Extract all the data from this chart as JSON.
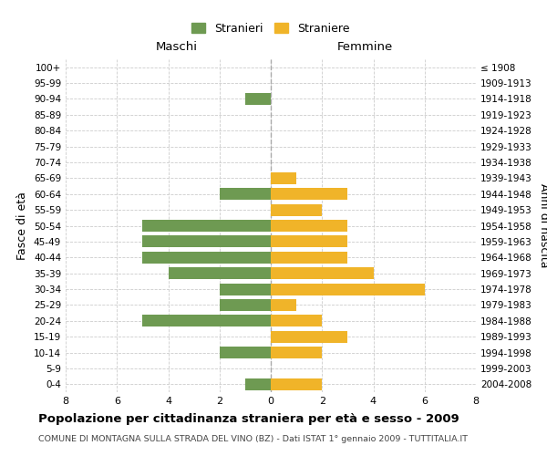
{
  "age_groups": [
    "0-4",
    "5-9",
    "10-14",
    "15-19",
    "20-24",
    "25-29",
    "30-34",
    "35-39",
    "40-44",
    "45-49",
    "50-54",
    "55-59",
    "60-64",
    "65-69",
    "70-74",
    "75-79",
    "80-84",
    "85-89",
    "90-94",
    "95-99",
    "100+"
  ],
  "birth_years": [
    "2004-2008",
    "1999-2003",
    "1994-1998",
    "1989-1993",
    "1984-1988",
    "1979-1983",
    "1974-1978",
    "1969-1973",
    "1964-1968",
    "1959-1963",
    "1954-1958",
    "1949-1953",
    "1944-1948",
    "1939-1943",
    "1934-1938",
    "1929-1933",
    "1924-1928",
    "1919-1923",
    "1914-1918",
    "1909-1913",
    "≤ 1908"
  ],
  "maschi": [
    1,
    0,
    2,
    0,
    5,
    2,
    2,
    4,
    5,
    5,
    5,
    0,
    2,
    0,
    0,
    0,
    0,
    0,
    1,
    0,
    0
  ],
  "femmine": [
    2,
    0,
    2,
    3,
    2,
    1,
    6,
    4,
    3,
    3,
    3,
    2,
    3,
    1,
    0,
    0,
    0,
    0,
    0,
    0,
    0
  ],
  "maschi_color": "#6e9a52",
  "femmine_color": "#f0b429",
  "bar_height": 0.75,
  "xlim": 8,
  "title": "Popolazione per cittadinanza straniera per età e sesso - 2009",
  "subtitle": "COMUNE DI MONTAGNA SULLA STRADA DEL VINO (BZ) - Dati ISTAT 1° gennaio 2009 - TUTTITALIA.IT",
  "ylabel_left": "Fasce di età",
  "ylabel_right": "Anni di nascita",
  "maschi_label": "Stranieri",
  "femmine_label": "Straniere",
  "maschi_header": "Maschi",
  "femmine_header": "Femmine",
  "background_color": "#ffffff",
  "grid_color": "#cccccc"
}
